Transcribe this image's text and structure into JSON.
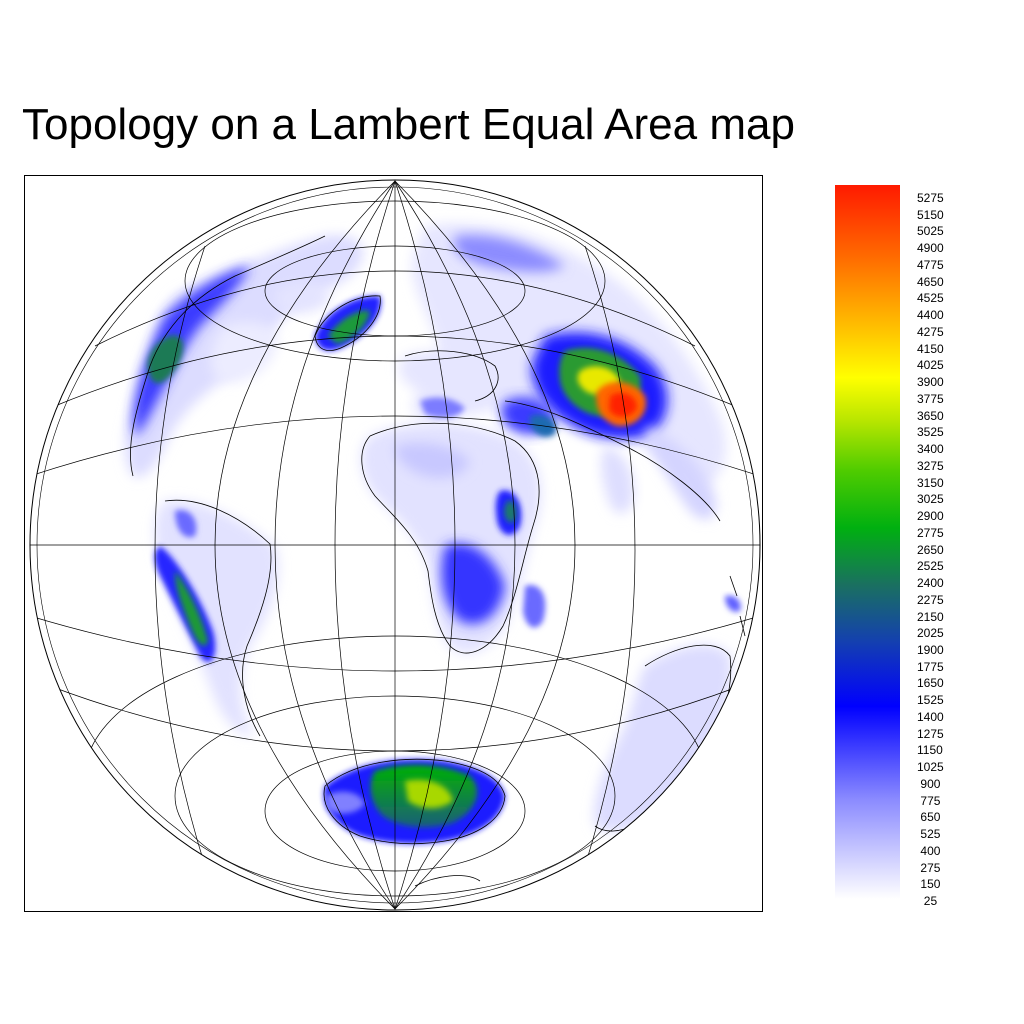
{
  "title": "Topology on a Lambert Equal Area map",
  "colorbar": {
    "labels": [
      "5275",
      "5150",
      "5025",
      "4900",
      "4775",
      "4650",
      "4525",
      "4400",
      "4275",
      "4150",
      "4025",
      "3900",
      "3775",
      "3650",
      "3525",
      "3400",
      "3275",
      "3150",
      "3025",
      "2900",
      "2775",
      "2650",
      "2525",
      "2400",
      "2275",
      "2150",
      "2025",
      "1900",
      "1775",
      "1650",
      "1525",
      "1400",
      "1275",
      "1150",
      "1025",
      "900",
      "775",
      "650",
      "525",
      "400",
      "275",
      "150",
      "25"
    ],
    "colors": {
      "low": "#ffffff",
      "light_blue": "#b3b3ff",
      "blue": "#0000ff",
      "dark_teal": "#1e6f5c",
      "green": "#00b000",
      "yellow": "#ffff00",
      "orange": "#ffa500",
      "red": "#ff1a00"
    }
  },
  "map": {
    "projection": "Lambert Equal Area",
    "coastline_color": "#000000",
    "grid_color": "#000000"
  }
}
